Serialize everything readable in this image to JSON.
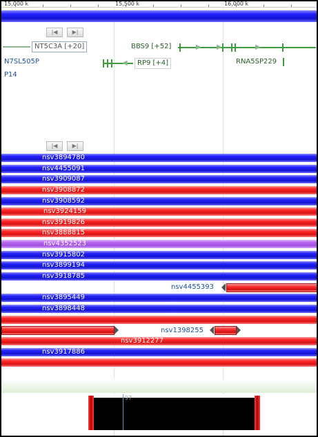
{
  "ruler": {
    "labels": [
      "15,000 k",
      "15,500 k",
      "16,000 k"
    ]
  },
  "nav": {
    "prev_icon": "|◀",
    "next_icon": "▶|"
  },
  "genes": {
    "nt5c3a": "NT5C3A [+20]",
    "bbs9": "BBS9 [+52]",
    "rp9": "RP9 [+4]",
    "rna5sp229": "RNA5SP229",
    "n7sl505p": "N7SL505P",
    "p14": "P14"
  },
  "tracks": [
    {
      "label": "nsv3894780",
      "color": "blue"
    },
    {
      "label": "nsv4455091",
      "color": "blue"
    },
    {
      "label": "nsv3909087",
      "color": "blue"
    },
    {
      "label": "nsv3908872",
      "color": "red"
    },
    {
      "label": "nsv3908592",
      "color": "blue"
    },
    {
      "label": "nsv3924159",
      "color": "red"
    },
    {
      "label": "nsv3919826",
      "color": "red"
    },
    {
      "label": "nsv3888815",
      "color": "red"
    },
    {
      "label": "nsv4352523",
      "color": "purple"
    },
    {
      "label": "nsv3915802",
      "color": "blue"
    },
    {
      "label": "nsv3899194",
      "color": "blue"
    },
    {
      "label": "nsv3918785",
      "color": "blue"
    }
  ],
  "extra_tracks": {
    "nsv4455393": "nsv4455393",
    "nsv3895449": "nsv3895449",
    "nsv3898448": "nsv3898448",
    "nsv1398255": "nsv1398255",
    "nsv3912277": "nsv3912277",
    "nsv3917886": "nsv3917886"
  },
  "bottom": {
    "marker": "97"
  }
}
